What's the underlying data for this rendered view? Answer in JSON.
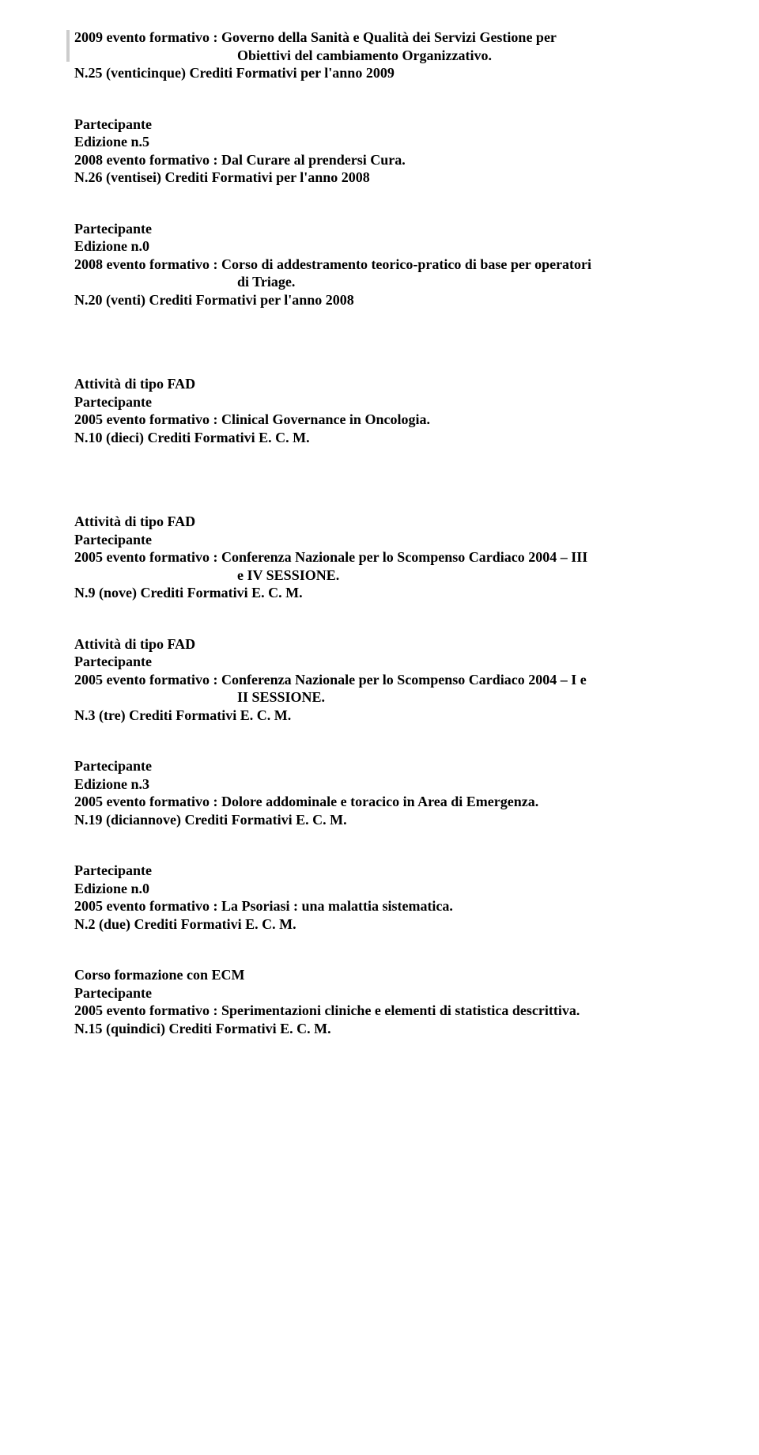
{
  "entries": [
    {
      "lines": [
        "2009 evento formativo : Governo della Sanità e Qualità dei Servizi Gestione per"
      ],
      "indented": "Obiettivi del cambiamento Organizzativo.",
      "after": [
        "N.25 (venticinque) Crediti Formativi per l'anno 2009"
      ],
      "barred": true
    },
    {
      "lines": [
        "Partecipante",
        "Edizione n.5",
        "2008 evento formativo : Dal Curare al prendersi Cura.",
        "N.26 (ventisei) Crediti Formativi per l'anno 2008"
      ]
    },
    {
      "lines": [
        "Partecipante",
        "Edizione n.0",
        "2008 evento formativo : Corso di addestramento teorico-pratico di base per operatori"
      ],
      "indented": "di Triage.",
      "after": [
        "N.20 (venti) Crediti Formativi per l'anno 2008"
      ],
      "bigGap": true
    },
    {
      "lines": [
        "Attività di tipo FAD",
        "Partecipante",
        "2005 evento formativo : Clinical Governance in Oncologia.",
        "N.10 (dieci) Crediti Formativi E. C. M."
      ],
      "bigGap": true
    },
    {
      "lines": [
        "Attività di tipo FAD",
        "Partecipante",
        "2005 evento formativo : Conferenza Nazionale per lo Scompenso Cardiaco 2004 – III"
      ],
      "indented": "e IV SESSIONE.",
      "after": [
        "N.9 (nove) Crediti Formativi E. C. M."
      ]
    },
    {
      "lines": [
        "Attività di tipo FAD",
        "Partecipante",
        "2005 evento formativo : Conferenza Nazionale per lo Scompenso Cardiaco 2004 – I e"
      ],
      "indented": "II SESSIONE.",
      "after": [
        "N.3 (tre) Crediti Formativi E. C. M."
      ]
    },
    {
      "lines": [
        "Partecipante",
        "Edizione n.3",
        "2005 evento formativo : Dolore addominale e toracico in Area di Emergenza.",
        "N.19 (diciannove) Crediti Formativi E. C. M."
      ]
    },
    {
      "lines": [
        "Partecipante",
        "Edizione n.0",
        "2005  evento formativo : La Psoriasi : una malattia sistematica.",
        "N.2 (due) Crediti Formativi E. C. M."
      ]
    },
    {
      "lines": [
        "Corso formazione con ECM",
        "Partecipante",
        "2005 evento formativo : Sperimentazioni cliniche e elementi di statistica descrittiva.",
        "N.15 (quindici) Crediti Formativi E. C. M."
      ]
    }
  ]
}
